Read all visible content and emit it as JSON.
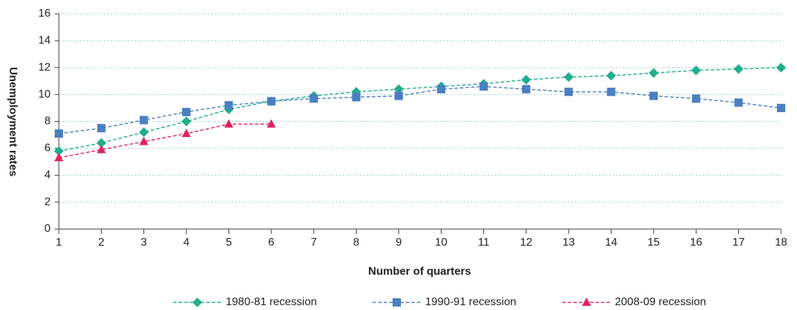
{
  "chart_data": {
    "type": "line",
    "x_label": "Number of quarters",
    "y_label": "Unemployment rates",
    "x": [
      1,
      2,
      3,
      4,
      5,
      6,
      7,
      8,
      9,
      10,
      11,
      12,
      13,
      14,
      15,
      16,
      17,
      18
    ],
    "series": [
      {
        "name": "1980-81 recession",
        "color": "#1fae8c",
        "marker": "diamond",
        "values": [
          5.8,
          6.4,
          7.2,
          8.0,
          8.9,
          9.5,
          9.9,
          10.2,
          10.4,
          10.6,
          10.8,
          11.1,
          11.3,
          11.4,
          11.6,
          11.8,
          11.9,
          12.0
        ]
      },
      {
        "name": "1990-91 recession",
        "color": "#4a7fc1",
        "marker": "square",
        "values": [
          7.1,
          7.5,
          8.1,
          8.7,
          9.2,
          9.5,
          9.7,
          9.8,
          9.9,
          10.4,
          10.6,
          10.4,
          10.2,
          10.2,
          9.9,
          9.7,
          9.4,
          9.0
        ]
      },
      {
        "name": "2008-09 recession",
        "color": "#e0245e",
        "marker": "triangle",
        "values": [
          5.3,
          5.9,
          6.5,
          7.1,
          7.8,
          7.8,
          null,
          null,
          null,
          null,
          null,
          null,
          null,
          null,
          null,
          null,
          null,
          null
        ]
      }
    ],
    "xlim": [
      1,
      18
    ],
    "xticks": [
      1,
      2,
      3,
      4,
      5,
      6,
      7,
      8,
      9,
      10,
      11,
      12,
      13,
      14,
      15,
      16,
      17,
      18
    ],
    "ylim": [
      0,
      16
    ],
    "yticks": [
      0,
      2,
      4,
      6,
      8,
      10,
      12,
      14,
      16
    ],
    "grid": true,
    "legend": "bottom"
  }
}
